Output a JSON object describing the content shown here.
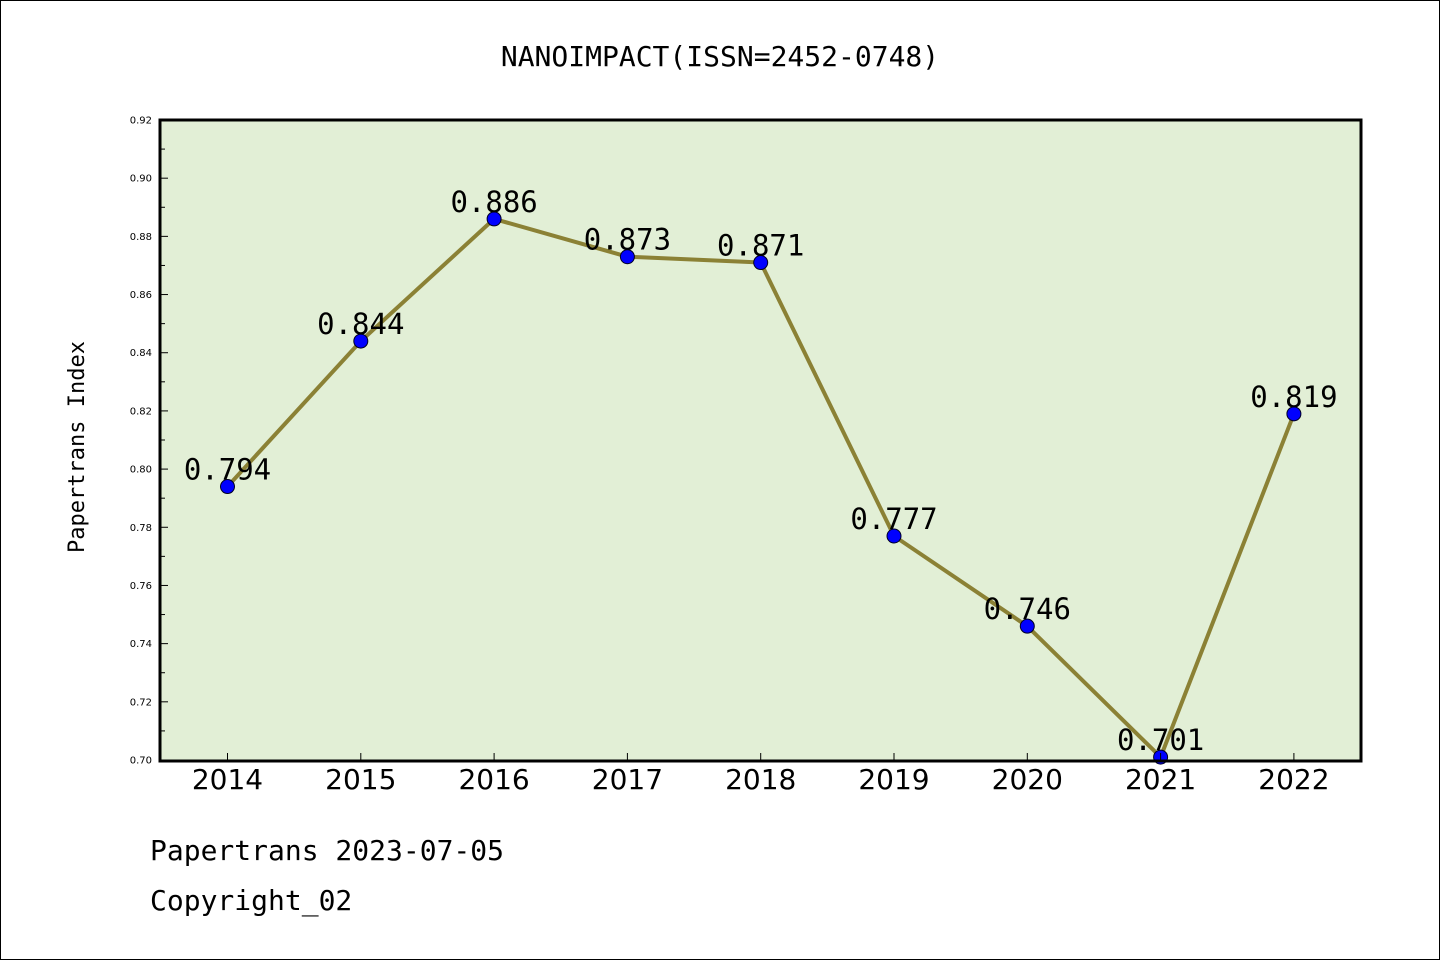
{
  "chart_data": {
    "type": "line",
    "title": "NANOIMPACT(ISSN=2452-0748)",
    "ylabel": "Papertrans Index",
    "xlabel": "",
    "categories": [
      "2014",
      "2015",
      "2016",
      "2017",
      "2018",
      "2019",
      "2020",
      "2021",
      "2022"
    ],
    "series": [
      {
        "values": [
          0.794,
          0.844,
          0.886,
          0.873,
          0.871,
          0.777,
          0.746,
          0.701,
          0.819
        ]
      }
    ],
    "data_labels": [
      "0.794",
      "0.844",
      "0.886",
      "0.873",
      "0.871",
      "0.777",
      "0.746",
      "0.701",
      "0.819"
    ],
    "ylim": [
      0.7,
      0.92
    ],
    "yticks": [
      "0.70",
      "0.72",
      "0.74",
      "0.76",
      "0.78",
      "0.80",
      "0.82",
      "0.84",
      "0.86",
      "0.88",
      "0.90",
      "0.92"
    ],
    "grid": false,
    "line_color": "#8b8135",
    "marker_color": "#0000ff",
    "plot_background": "#e2efd6"
  },
  "footer": {
    "date_line": "Papertrans 2023-07-05",
    "copyright": "Copyright_02"
  }
}
